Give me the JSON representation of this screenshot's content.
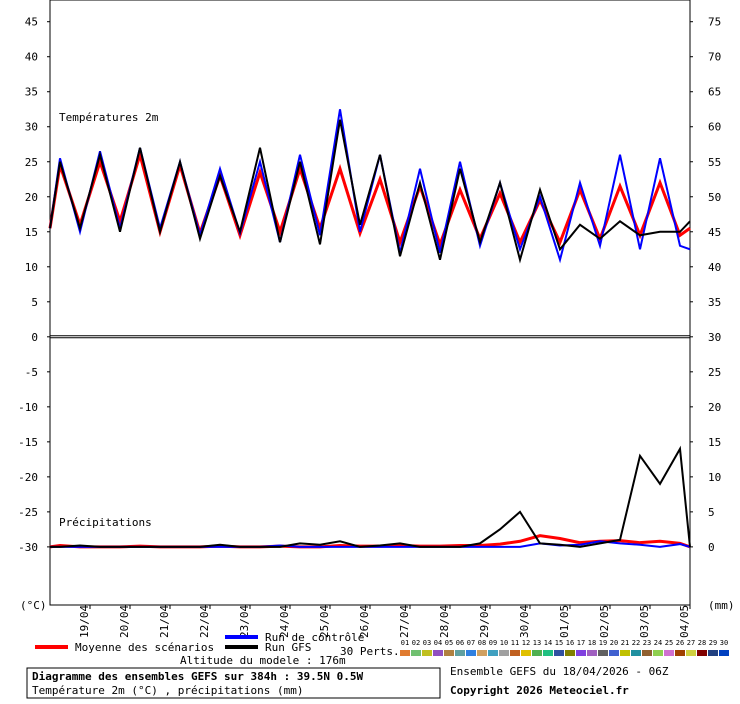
{
  "chart_data": {
    "type": "line",
    "panel_labels": [
      "Températures 2m",
      "Précipitations"
    ],
    "y_unit_label": "(°C)",
    "y2_unit_label": "(mm)",
    "x": [
      0,
      6,
      18,
      30,
      42,
      54,
      66,
      78,
      90,
      102,
      114,
      126,
      138,
      150,
      162,
      174,
      186,
      198,
      210,
      222,
      234,
      246,
      258,
      270,
      282,
      294,
      306,
      318,
      330,
      342,
      354,
      366,
      378,
      384
    ],
    "xlim": [
      0,
      384
    ],
    "xticks": [
      {
        "value": 24,
        "label": "19/04"
      },
      {
        "value": 48,
        "label": "20/04"
      },
      {
        "value": 72,
        "label": "21/04"
      },
      {
        "value": 96,
        "label": "22/04"
      },
      {
        "value": 120,
        "label": "23/04"
      },
      {
        "value": 144,
        "label": "24/04"
      },
      {
        "value": 168,
        "label": "25/04"
      },
      {
        "value": 192,
        "label": "26/04"
      },
      {
        "value": 216,
        "label": "27/04"
      },
      {
        "value": 240,
        "label": "28/04"
      },
      {
        "value": 264,
        "label": "29/04"
      },
      {
        "value": 288,
        "label": "30/04"
      },
      {
        "value": 312,
        "label": "01/05"
      },
      {
        "value": 336,
        "label": "02/05"
      },
      {
        "value": 360,
        "label": "03/05"
      },
      {
        "value": 384,
        "label": "04/05"
      }
    ],
    "ylim": [
      -38.3,
      48.1
    ],
    "yticks": [
      45,
      40,
      35,
      30,
      25,
      20,
      15,
      10,
      5,
      0,
      -5,
      -10,
      -15,
      -20,
      -25,
      -30
    ],
    "y2lim": [
      -8.3,
      78.1
    ],
    "y2ticks": [
      75,
      70,
      65,
      60,
      55,
      50,
      45,
      40,
      35,
      30,
      25,
      20,
      15,
      10,
      5,
      0
    ],
    "series": [
      {
        "name": "Moyenne des scénarios",
        "color": "#ff0000",
        "axis": "y",
        "values": [
          15.5,
          24.5,
          16,
          25,
          16.5,
          26,
          15,
          24.5,
          14.8,
          23,
          14.5,
          23.5,
          15,
          24,
          15.5,
          24,
          14.8,
          22.5,
          13.5,
          21.5,
          13.2,
          21,
          14,
          20.5,
          13.5,
          19.5,
          13.5,
          21,
          14,
          21.5,
          14.5,
          22,
          14.5,
          15.5
        ]
      },
      {
        "name": "Run de contrôle",
        "color": "#0000ff",
        "axis": "y",
        "values": [
          15.5,
          25.5,
          15,
          26.5,
          15.5,
          27,
          15.5,
          25,
          14.5,
          24,
          14.8,
          25,
          13.5,
          26,
          14.5,
          32.5,
          15,
          26,
          12,
          24,
          12,
          25,
          13,
          22,
          12.5,
          20,
          11,
          22,
          13,
          26,
          12.5,
          25.5,
          13,
          12.5
        ]
      },
      {
        "name": "Run GFS",
        "color": "#000000",
        "axis": "y",
        "values": [
          15.5,
          25,
          15.5,
          26,
          15,
          27,
          15,
          25,
          14,
          23,
          15,
          27,
          13.5,
          25,
          13.2,
          31,
          16,
          26,
          11.5,
          22,
          11,
          24,
          13.5,
          22,
          11,
          21,
          12.5,
          16,
          14,
          16.5,
          14.5,
          15,
          15,
          16.5
        ]
      },
      {
        "name": "Moyenne des scénarios",
        "color": "#ff0000",
        "axis": "y2",
        "values": [
          0,
          0.2,
          0,
          0,
          0,
          0.1,
          0,
          0,
          0,
          0.1,
          0,
          0,
          0.1,
          0,
          0,
          0.2,
          0.1,
          0.1,
          0.2,
          0.1,
          0.1,
          0.2,
          0.2,
          0.4,
          0.8,
          1.6,
          1.2,
          0.6,
          0.8,
          0.9,
          0.6,
          0.8,
          0.5,
          0
        ]
      },
      {
        "name": "Run de contrôle",
        "color": "#0000ff",
        "axis": "y2",
        "values": [
          0,
          0,
          0,
          0,
          0,
          0,
          0,
          0,
          0,
          0,
          0,
          0,
          0.2,
          0,
          0,
          0,
          0,
          0,
          0,
          0,
          0,
          0,
          0,
          0,
          0,
          0.5,
          0.2,
          0.3,
          0.8,
          0.5,
          0.3,
          0,
          0.4,
          0
        ]
      },
      {
        "name": "Run GFS",
        "color": "#000000",
        "axis": "y2",
        "values": [
          0,
          0,
          0.2,
          0,
          0,
          0,
          0,
          0,
          0,
          0.3,
          0,
          0,
          0,
          0.5,
          0.3,
          0.8,
          0,
          0.2,
          0.5,
          0,
          0,
          0,
          0.5,
          2.5,
          5,
          0.5,
          0.3,
          0,
          0.5,
          1,
          13,
          9,
          14,
          0
        ]
      }
    ],
    "perturbations": {
      "label": "30 Perts.",
      "codes": [
        "01",
        "02",
        "03",
        "04",
        "05",
        "06",
        "07",
        "08",
        "09",
        "10",
        "11",
        "12",
        "13",
        "14",
        "15",
        "16",
        "17",
        "18",
        "19",
        "20",
        "21",
        "22",
        "23",
        "24",
        "25",
        "26",
        "27",
        "28",
        "29",
        "30"
      ],
      "colors": [
        "#e07b30",
        "#70c070",
        "#c0c020",
        "#9050c0",
        "#b08040",
        "#60a0a0",
        "#3080e0",
        "#d0a060",
        "#40a0c0",
        "#a0a0a0",
        "#c06020",
        "#e0c000",
        "#50b050",
        "#20c080",
        "#3050a0",
        "#808000",
        "#8040e0",
        "#a060c0",
        "#606060",
        "#4060d0",
        "#c0c000",
        "#2090a0",
        "#906030",
        "#90d050",
        "#d070d0",
        "#a04000",
        "#d0d040",
        "#800000",
        "#204080",
        "#0040c0"
      ]
    },
    "altitude": "Altitude du modele : 176m",
    "footer": {
      "title": "Diagramme des ensembles GEFS sur 384h : 39.5N 0.5W",
      "subtitle": "Température 2m (°C) , précipitations (mm)",
      "run": "Ensemble GEFS du 18/04/2026 - 06Z",
      "copyright": "Copyright 2026 Meteociel.fr"
    }
  }
}
